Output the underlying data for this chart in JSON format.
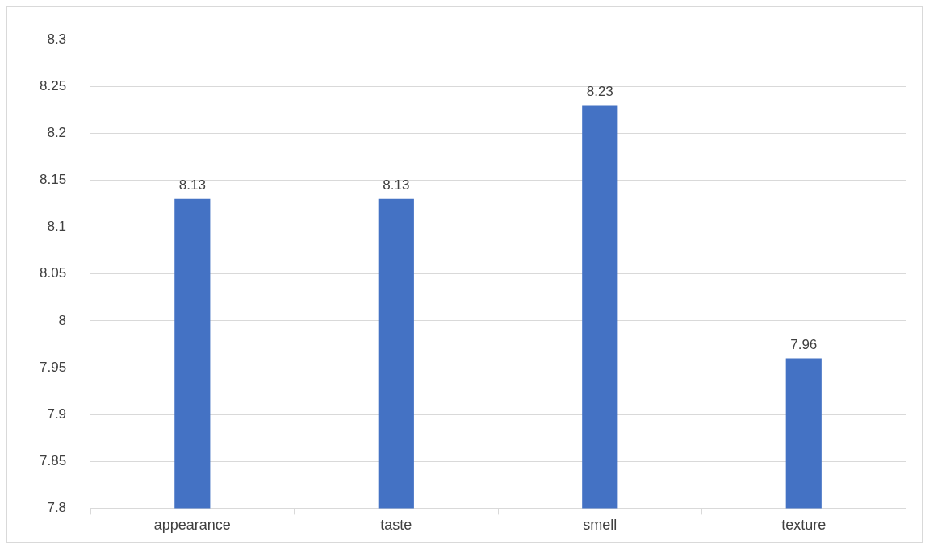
{
  "chart_data": {
    "type": "bar",
    "categories": [
      "appearance",
      "taste",
      "smell",
      "texture"
    ],
    "values": [
      8.13,
      8.13,
      8.23,
      7.96
    ],
    "color": "#4472c4",
    "ylim": [
      7.8,
      8.3
    ],
    "yticks": [
      7.8,
      7.85,
      7.9,
      7.95,
      8,
      8.05,
      8.1,
      8.15,
      8.2,
      8.25,
      8.3
    ],
    "grid": "y",
    "data_labels": true
  }
}
